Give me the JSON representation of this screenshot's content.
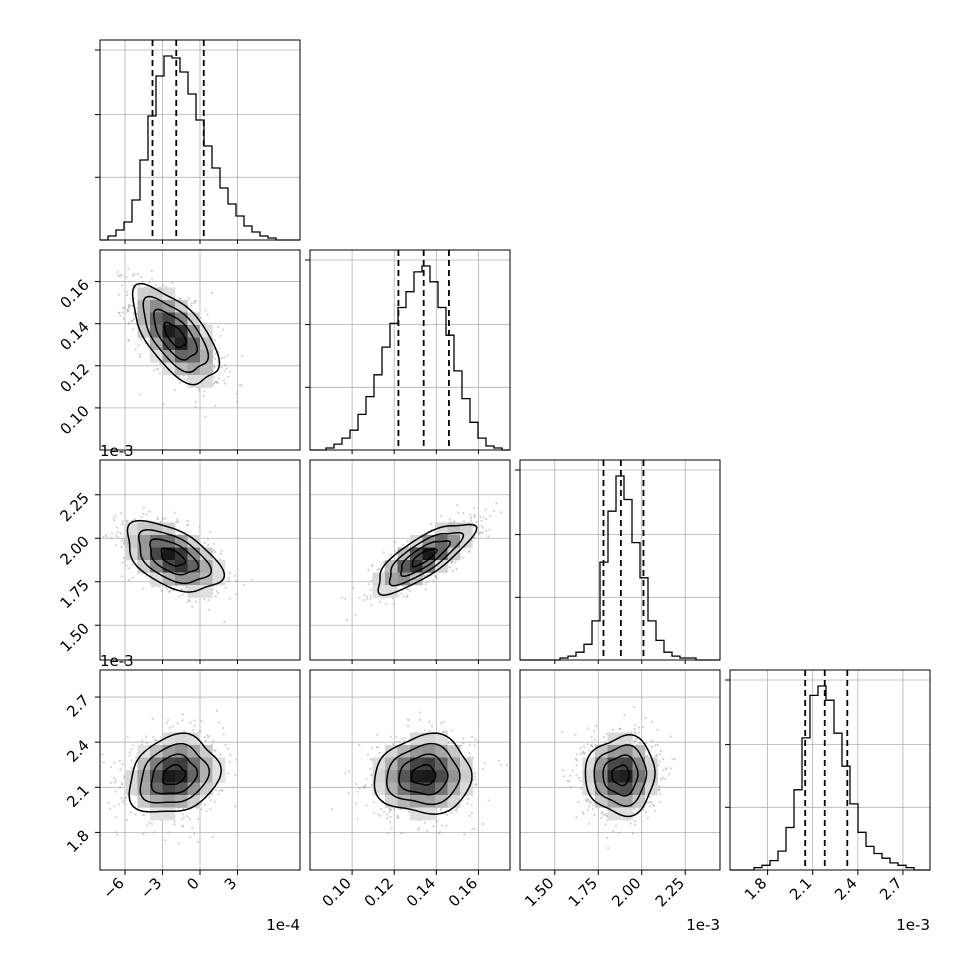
{
  "chart_data": {
    "type": "corner",
    "title": "",
    "grid": true,
    "parameters": [
      {
        "index": 0,
        "scale_label": "1e-4",
        "range": [
          -8.0,
          8.0
        ],
        "ticks": [
          -6,
          -3,
          0,
          3
        ],
        "tick_labels": [
          "−6",
          "−3",
          "0",
          "3"
        ]
      },
      {
        "index": 1,
        "scale_label": "",
        "range": [
          0.08,
          0.175
        ],
        "ticks": [
          0.1,
          0.12,
          0.14,
          0.16
        ],
        "tick_labels": [
          "0.10",
          "0.12",
          "0.14",
          "0.16"
        ]
      },
      {
        "index": 2,
        "scale_label": "1e-3",
        "range": [
          1.3,
          2.45
        ],
        "ticks": [
          1.5,
          1.75,
          2.0,
          2.25
        ],
        "tick_labels": [
          "1.50",
          "1.75",
          "2.00",
          "2.25"
        ]
      },
      {
        "index": 3,
        "scale_label": "1e-3",
        "range": [
          1.55,
          2.88
        ],
        "ticks": [
          1.8,
          2.1,
          2.4,
          2.7
        ],
        "tick_labels": [
          "1.8",
          "2.1",
          "2.4",
          "2.7"
        ]
      }
    ],
    "histograms": [
      {
        "param": 0,
        "quantiles": [
          -3.8,
          -1.9,
          0.3
        ],
        "bin_edges": [
          -8.0,
          -7.36,
          -6.72,
          -6.08,
          -5.44,
          -4.8,
          -4.16,
          -3.52,
          -2.88,
          -2.24,
          -1.6,
          -0.96,
          -0.32,
          0.32,
          0.96,
          1.6,
          2.24,
          2.88,
          3.52,
          4.16,
          4.8,
          5.44,
          6.08,
          6.72,
          7.36,
          8.0
        ],
        "counts": [
          0,
          2,
          5,
          9,
          20,
          40,
          62,
          82,
          92,
          91,
          84,
          73,
          60,
          47,
          36,
          26,
          18,
          12,
          7,
          4,
          2,
          1,
          0,
          0,
          0
        ]
      },
      {
        "param": 1,
        "quantiles": [
          0.122,
          0.134,
          0.146
        ],
        "bin_edges": [
          0.08,
          0.0838,
          0.0876,
          0.0914,
          0.0952,
          0.099,
          0.1028,
          0.1066,
          0.1104,
          0.1142,
          0.118,
          0.1218,
          0.1256,
          0.1294,
          0.1332,
          0.137,
          0.1408,
          0.1446,
          0.1484,
          0.1522,
          0.156,
          0.1598,
          0.1636,
          0.1674,
          0.1712,
          0.175
        ],
        "counts": [
          0,
          0,
          1,
          3,
          6,
          10,
          18,
          27,
          38,
          52,
          64,
          72,
          80,
          90,
          93,
          85,
          72,
          58,
          40,
          26,
          14,
          6,
          2,
          1,
          0
        ]
      },
      {
        "param": 2,
        "quantiles": [
          1.78,
          1.88,
          2.01
        ],
        "bin_edges": [
          1.3,
          1.346,
          1.392,
          1.438,
          1.484,
          1.53,
          1.576,
          1.622,
          1.668,
          1.714,
          1.76,
          1.806,
          1.852,
          1.898,
          1.944,
          1.99,
          2.036,
          2.082,
          2.128,
          2.174,
          2.22,
          2.266,
          2.312,
          2.358,
          2.404,
          2.45
        ],
        "counts": [
          0,
          0,
          0,
          0,
          0,
          1,
          2,
          4,
          8,
          20,
          50,
          76,
          94,
          82,
          60,
          42,
          20,
          10,
          4,
          2,
          1,
          1,
          0,
          0,
          0
        ]
      },
      {
        "param": 3,
        "quantiles": [
          2.05,
          2.18,
          2.33
        ],
        "bin_edges": [
          1.55,
          1.6032,
          1.6564,
          1.7096,
          1.7628,
          1.816,
          1.8692,
          1.9224,
          1.9756,
          2.0288,
          2.082,
          2.1352,
          2.1884,
          2.2416,
          2.2948,
          2.348,
          2.4012,
          2.4544,
          2.5076,
          2.5608,
          2.614,
          2.6672,
          2.7204,
          2.7736,
          2.8268,
          2.88
        ],
        "counts": [
          0,
          0,
          0,
          1,
          2,
          4,
          8,
          18,
          34,
          56,
          74,
          78,
          72,
          58,
          44,
          28,
          16,
          10,
          7,
          5,
          3,
          2,
          1,
          0,
          0
        ]
      }
    ],
    "pairs": [
      {
        "x_param": 0,
        "y_param": 1,
        "center": [
          -2.0,
          0.1345
        ],
        "sd": [
          1.7,
          0.0115
        ],
        "corr": -0.62
      },
      {
        "x_param": 0,
        "y_param": 2,
        "center": [
          -2.2,
          1.89
        ],
        "sd": [
          1.9,
          0.1
        ],
        "corr": -0.5
      },
      {
        "x_param": 1,
        "y_param": 2,
        "center": [
          0.134,
          1.89
        ],
        "sd": [
          0.0115,
          0.1
        ],
        "corr": 0.78
      },
      {
        "x_param": 0,
        "y_param": 3,
        "center": [
          -2.1,
          2.18
        ],
        "sd": [
          1.8,
          0.13
        ],
        "corr": 0.2
      },
      {
        "x_param": 1,
        "y_param": 3,
        "center": [
          0.134,
          2.18
        ],
        "sd": [
          0.0115,
          0.13
        ],
        "corr": 0.05
      },
      {
        "x_param": 2,
        "y_param": 3,
        "center": [
          1.88,
          2.18
        ],
        "sd": [
          0.1,
          0.13
        ],
        "corr": 0.02
      }
    ],
    "contour_levels_sigma": [
      0.5,
      1.0,
      1.5,
      2.0
    ],
    "colors": {
      "line": "#000000",
      "grid": "#b0b0b0",
      "scatter": "#9a9a9a",
      "density": "#000000"
    }
  }
}
